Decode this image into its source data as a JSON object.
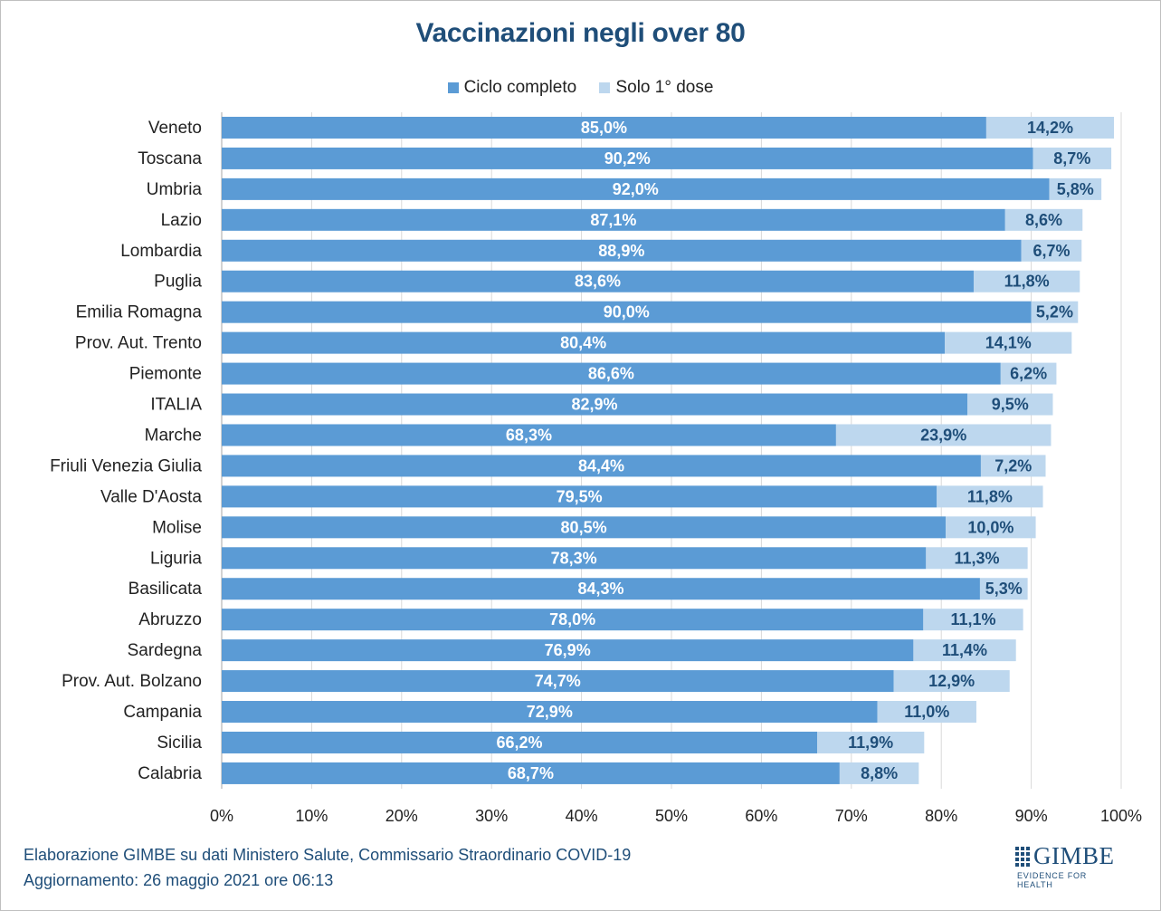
{
  "chart_data": {
    "type": "bar",
    "orientation": "horizontal",
    "stacked": true,
    "title": "Vaccinazioni negli over 80",
    "categories": [
      "Veneto",
      "Toscana",
      "Umbria",
      "Lazio",
      "Lombardia",
      "Puglia",
      "Emilia Romagna",
      "Prov. Aut. Trento",
      "Piemonte",
      "ITALIA",
      "Marche",
      "Friuli Venezia Giulia",
      "Valle D'Aosta",
      "Molise",
      "Liguria",
      "Basilicata",
      "Abruzzo",
      "Sardegna",
      "Prov. Aut. Bolzano",
      "Campania",
      "Sicilia",
      "Calabria"
    ],
    "series": [
      {
        "name": "Ciclo completo",
        "color": "#5b9bd5",
        "label_color": "#ffffff",
        "values": [
          85.0,
          90.2,
          92.0,
          87.1,
          88.9,
          83.6,
          90.0,
          80.4,
          86.6,
          82.9,
          68.3,
          84.4,
          79.5,
          80.5,
          78.3,
          84.3,
          78.0,
          76.9,
          74.7,
          72.9,
          66.2,
          68.7
        ],
        "labels": [
          "85,0%",
          "90,2%",
          "92,0%",
          "87,1%",
          "88,9%",
          "83,6%",
          "90,0%",
          "80,4%",
          "86,6%",
          "82,9%",
          "68,3%",
          "84,4%",
          "79,5%",
          "80,5%",
          "78,3%",
          "84,3%",
          "78,0%",
          "76,9%",
          "74,7%",
          "72,9%",
          "66,2%",
          "68,7%"
        ]
      },
      {
        "name": "Solo 1° dose",
        "color": "#bdd7ee",
        "label_color": "#1f4e79",
        "values": [
          14.2,
          8.7,
          5.8,
          8.6,
          6.7,
          11.8,
          5.2,
          14.1,
          6.2,
          9.5,
          23.9,
          7.2,
          11.8,
          10.0,
          11.3,
          5.3,
          11.1,
          11.4,
          12.9,
          11.0,
          11.9,
          8.8
        ],
        "labels": [
          "14,2%",
          "8,7%",
          "5,8%",
          "8,6%",
          "6,7%",
          "11,8%",
          "5,2%",
          "14,1%",
          "6,2%",
          "9,5%",
          "23,9%",
          "7,2%",
          "11,8%",
          "10,0%",
          "11,3%",
          "5,3%",
          "11,1%",
          "11,4%",
          "12,9%",
          "11,0%",
          "11,9%",
          "8,8%"
        ]
      }
    ],
    "xlim": [
      0,
      100
    ],
    "x_ticks": [
      "0%",
      "10%",
      "20%",
      "30%",
      "40%",
      "50%",
      "60%",
      "70%",
      "80%",
      "90%",
      "100%"
    ],
    "grid": true,
    "legend_position": "top"
  },
  "footer": {
    "line1": "Elaborazione GIMBE su dati Ministero Salute, Commissario Straordinario COVID-19",
    "line2": "Aggiornamento: 26 maggio 2021 ore 06:13"
  },
  "logo": {
    "name": "GIMBE",
    "tagline": "EVIDENCE FOR HEALTH",
    "icon": "gimbe-grid-logo-icon"
  },
  "colors": {
    "title": "#1f4e79",
    "full_cycle": "#5b9bd5",
    "first_dose": "#bdd7ee"
  }
}
